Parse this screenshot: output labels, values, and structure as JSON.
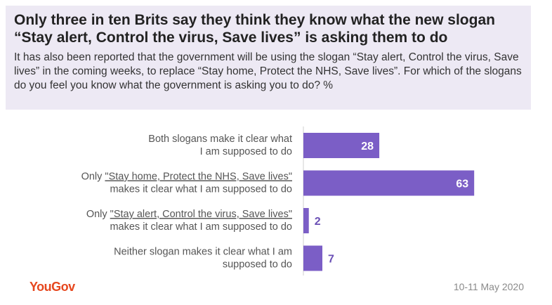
{
  "header": {
    "title": "Only three in ten Brits say they think they know what the new slogan “Stay alert, Control the virus, Save lives” is asking them to do",
    "subtitle": "It has also been reported that the government will be using the slogan “Stay alert, Control the virus, Save lives” in the coming weeks, to replace “Stay home, Protect the NHS, Save lives”. For which of the slogans do you feel you know what the government is asking you to do? %"
  },
  "footer": {
    "brand": "YouGov",
    "date": "10-11 May 2020"
  },
  "colors": {
    "bar": "#7b5ec6",
    "header_bg": "#ede9f4",
    "brand": "#e6471e"
  },
  "chart_data": {
    "type": "bar",
    "orientation": "horizontal",
    "categories": [
      {
        "line1": "Both slogans make it clear what",
        "line2": "I am supposed to do"
      },
      {
        "prefix": "Only ",
        "quoted": "\"Stay home, Protect the NHS, Save lives\"",
        "line2": "makes it clear what I am supposed to do"
      },
      {
        "prefix": "Only ",
        "quoted": "\"Stay alert, Control the virus, Save lives\"",
        "line2": "makes it clear what I am supposed to do"
      },
      {
        "line1": "Neither slogan makes it clear what I am",
        "line2": "supposed to do"
      }
    ],
    "values": [
      28,
      63,
      2,
      7
    ],
    "value_labels": [
      "28",
      "63",
      "2",
      "7"
    ],
    "xlim": [
      0,
      100
    ]
  }
}
